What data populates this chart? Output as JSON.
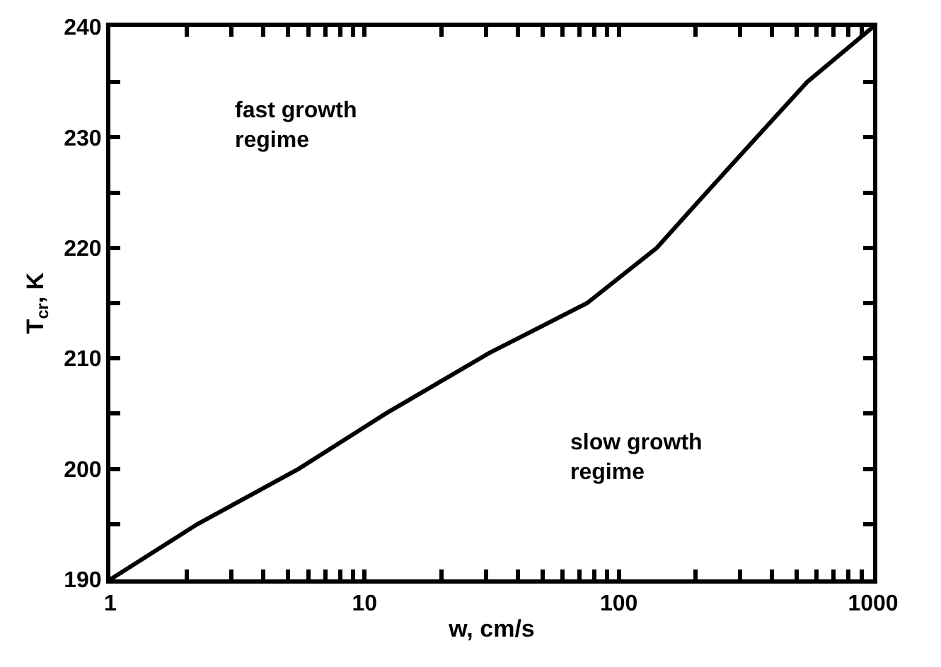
{
  "chart_data": {
    "type": "line",
    "xlabel": "w, cm/s",
    "ylabel": "T$_{cr}$, K",
    "log": "x",
    "x": [
      1,
      2.2,
      5.5,
      12.1,
      31,
      75,
      141,
      202,
      318,
      550,
      1000
    ],
    "series": [
      {
        "color": "#000000",
        "values": [
          190,
          195,
          200,
          205,
          210.5,
          215,
          220,
          224,
          229,
          235,
          240
        ]
      }
    ],
    "xlim": [
      1,
      1000
    ],
    "xticks": [
      1,
      {
        "value": 2,
        "label": null
      },
      {
        "value": 3,
        "label": null
      },
      {
        "value": 4,
        "label": null
      },
      {
        "value": 5,
        "label": null
      },
      {
        "value": 6,
        "label": null
      },
      {
        "value": 7,
        "label": null
      },
      {
        "value": 8,
        "label": null
      },
      {
        "value": 9,
        "label": null
      },
      10,
      {
        "value": 20,
        "label": null
      },
      {
        "value": 30,
        "label": null
      },
      {
        "value": 40,
        "label": null
      },
      {
        "value": 50,
        "label": null
      },
      {
        "value": 60,
        "label": null
      },
      {
        "value": 70,
        "label": null
      },
      {
        "value": 80,
        "label": null
      },
      {
        "value": 90,
        "label": null
      },
      100,
      {
        "value": 200,
        "label": null
      },
      {
        "value": 300,
        "label": null
      },
      {
        "value": 400,
        "label": null
      },
      {
        "value": 500,
        "label": null
      },
      {
        "value": 600,
        "label": null
      },
      {
        "value": 700,
        "label": null
      },
      {
        "value": 800,
        "label": null
      },
      {
        "value": 900,
        "label": null
      },
      1000
    ],
    "ylim": [
      190,
      240
    ],
    "yticks": [
      190,
      {
        "value": 195,
        "label": null
      },
      200,
      {
        "value": 205,
        "label": null
      },
      210,
      {
        "value": 215,
        "label": null
      },
      220,
      {
        "value": 225,
        "label": null
      },
      230,
      {
        "value": 235,
        "label": null
      },
      240
    ],
    "annotations": [
      "fast growth\nregime",
      "slow growth\nregime"
    ],
    "legend": false,
    "marker": "none",
    "line_style": "solid"
  }
}
